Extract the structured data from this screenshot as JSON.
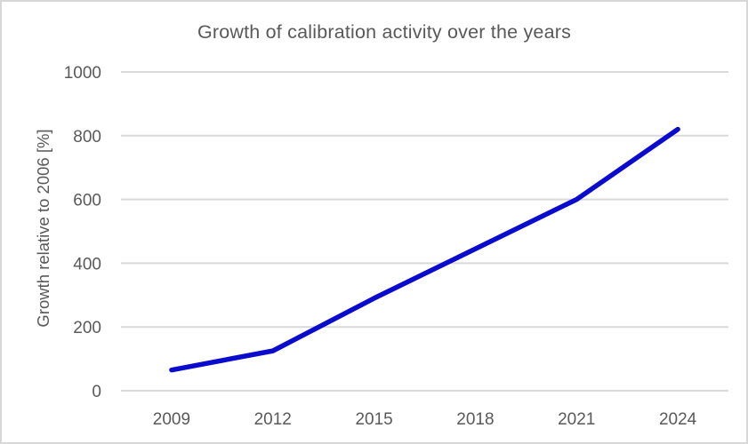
{
  "chart": {
    "title": "Growth of calibration activity over the years",
    "y_axis_label": "Growth relative to 2006 [%]"
  },
  "chart_data": {
    "type": "line",
    "title": "Growth of calibration activity over the years",
    "xlabel": "",
    "ylabel": "Growth relative to 2006 [%]",
    "categories": [
      "2009",
      "2012",
      "2015",
      "2018",
      "2021",
      "2024"
    ],
    "series": [
      {
        "name": "Growth relative to 2006 [%]",
        "values": [
          65,
          125,
          290,
          445,
          600,
          820
        ]
      }
    ],
    "ylim": [
      0,
      1000
    ],
    "y_ticks": [
      0,
      200,
      400,
      600,
      800,
      1000
    ],
    "grid": true,
    "legend_position": "none",
    "line_color": "#0b0bcd",
    "text_color": "#595959",
    "gridline_color": "#d9d9d9",
    "background_color": "#ffffff"
  }
}
